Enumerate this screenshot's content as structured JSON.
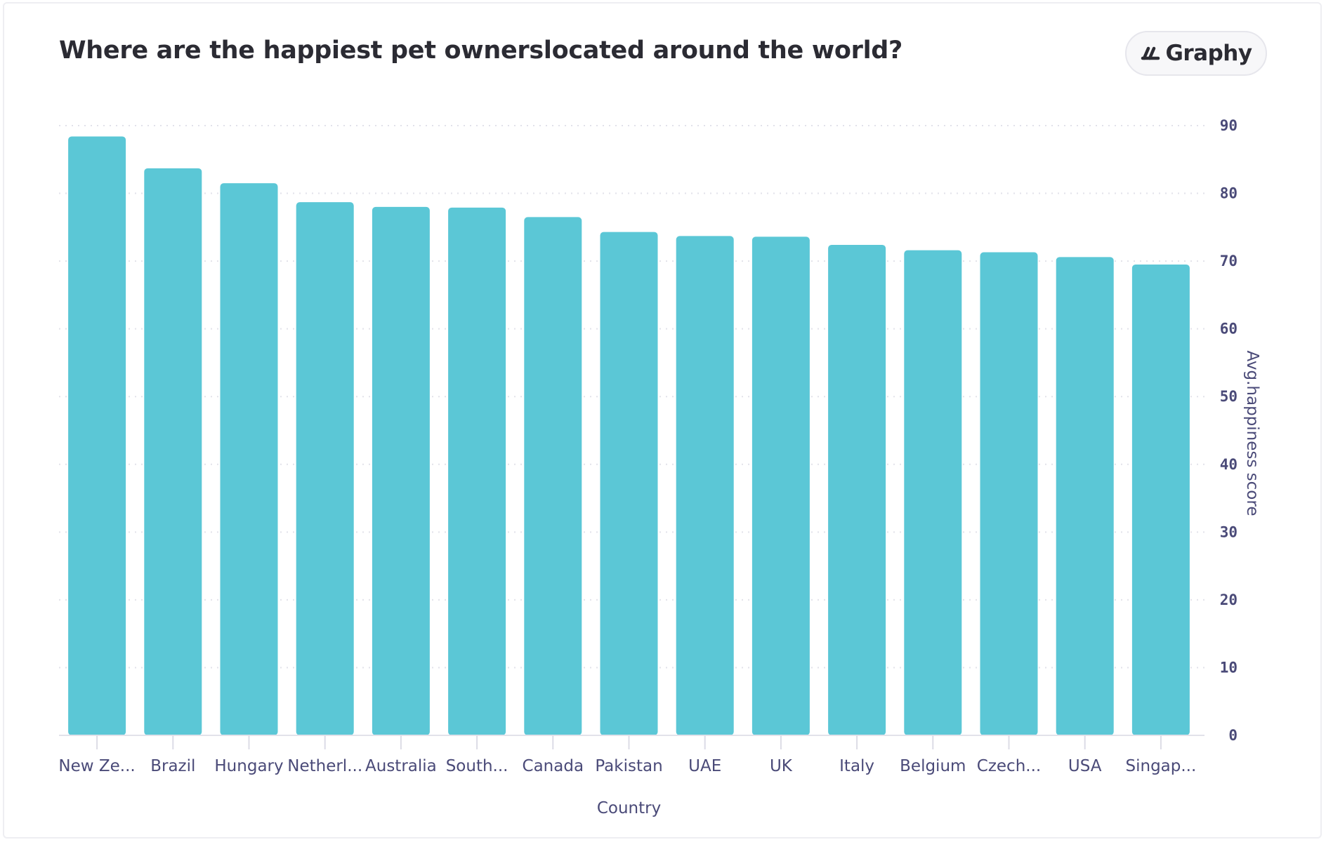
{
  "header": {
    "title": "Where are the happiest pet ownerslocated around the world?",
    "brand": "Graphy"
  },
  "chart_data": {
    "type": "bar",
    "title": "Where are the happiest pet ownerslocated around the world?",
    "xlabel": "Country",
    "ylabel": "Avg.happiness score",
    "categories": [
      "New Ze...",
      "Brazil",
      "Hungary",
      "Netherl...",
      "Australia",
      "South...",
      "Canada",
      "Pakistan",
      "UAE",
      "UK",
      "Italy",
      "Belgium",
      "Czech...",
      "USA",
      "Singap..."
    ],
    "values": [
      88.4,
      83.7,
      81.5,
      78.7,
      78.0,
      77.9,
      76.5,
      74.3,
      73.7,
      73.6,
      72.4,
      71.6,
      71.3,
      70.6,
      69.5
    ],
    "ylim": [
      0,
      90
    ],
    "yticks": [
      0,
      10,
      20,
      30,
      40,
      50,
      60,
      70,
      80,
      90
    ],
    "y_axis_side": "right",
    "grid": true,
    "grid_style": "dotted",
    "bar_color": "#5bc7d6"
  }
}
